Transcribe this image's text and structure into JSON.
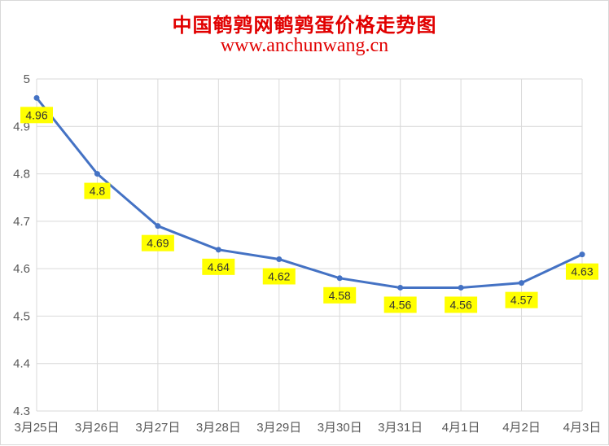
{
  "chart_data": {
    "type": "line",
    "title": "中国鹌鹑网鹌鹑蛋价格走势图",
    "subtitle": "www.anchunwang.cn",
    "categories": [
      "3月25日",
      "3月26日",
      "3月27日",
      "3月28日",
      "3月29日",
      "3月30日",
      "3月31日",
      "4月1日",
      "4月2日",
      "4月3日"
    ],
    "series": [
      {
        "values": [
          4.96,
          4.8,
          4.69,
          4.64,
          4.62,
          4.58,
          4.56,
          4.56,
          4.57,
          4.63
        ]
      }
    ],
    "data_labels": [
      "4.96",
      "4.8",
      "4.69",
      "4.64",
      "4.62",
      "4.58",
      "4.56",
      "4.56",
      "4.57",
      "4.63"
    ],
    "ylim": [
      4.3,
      5
    ],
    "yticks": [
      "4.3",
      "4.4",
      "4.5",
      "4.6",
      "4.7",
      "4.8",
      "4.9",
      "5"
    ],
    "grid": true,
    "colors": {
      "line": "#4472c4",
      "label_bg": "#ffff00",
      "grid": "#d9d9d9",
      "title": "#e10000"
    }
  }
}
